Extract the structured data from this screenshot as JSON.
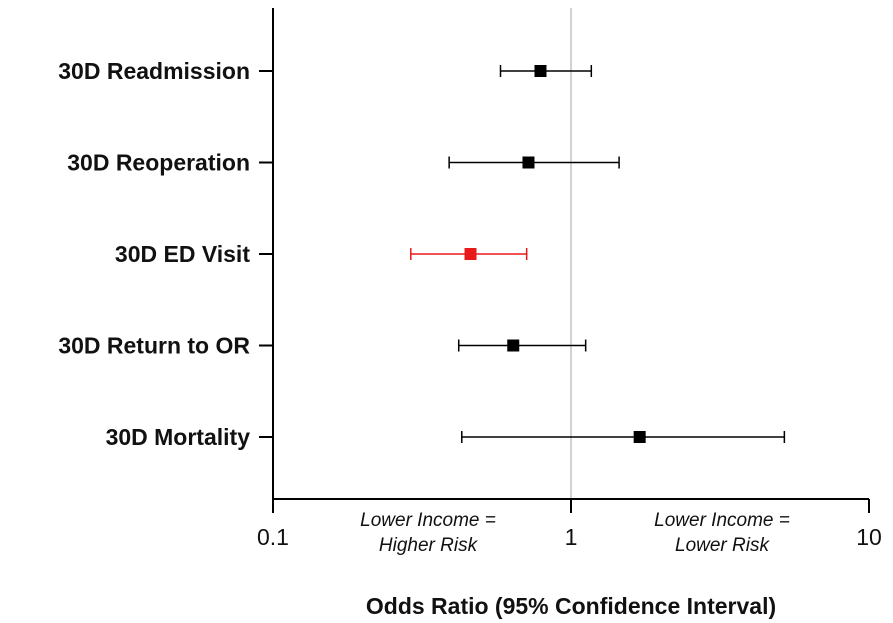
{
  "chart_data": {
    "type": "forest",
    "title": "",
    "xlabel": "Odds Ratio (95% Confidence Interval)",
    "ylabel": "",
    "x_scale": "log",
    "xlim": [
      0.1,
      10
    ],
    "x_ticks": [
      {
        "value": 0.1,
        "label": "0.1"
      },
      {
        "value": 1,
        "label": "1"
      },
      {
        "value": 10,
        "label": "10"
      }
    ],
    "reference_line": 1,
    "grid": false,
    "rows": [
      {
        "label": "30D Readmission",
        "or": 0.79,
        "lower": 0.58,
        "upper": 1.17,
        "color": "#000000"
      },
      {
        "label": "30D Reoperation",
        "or": 0.72,
        "lower": 0.39,
        "upper": 1.45,
        "color": "#000000"
      },
      {
        "label": "30D ED Visit",
        "or": 0.46,
        "lower": 0.29,
        "upper": 0.71,
        "color": "#e8191b"
      },
      {
        "label": "30D Return to OR",
        "or": 0.64,
        "lower": 0.42,
        "upper": 1.12,
        "color": "#000000"
      },
      {
        "label": "30D Mortality",
        "or": 1.7,
        "lower": 0.43,
        "upper": 5.2,
        "color": "#000000"
      }
    ],
    "annotations": {
      "left": [
        "Lower Income =",
        "Higher Risk"
      ],
      "right": [
        "Lower Income =",
        "Lower Risk"
      ]
    }
  }
}
